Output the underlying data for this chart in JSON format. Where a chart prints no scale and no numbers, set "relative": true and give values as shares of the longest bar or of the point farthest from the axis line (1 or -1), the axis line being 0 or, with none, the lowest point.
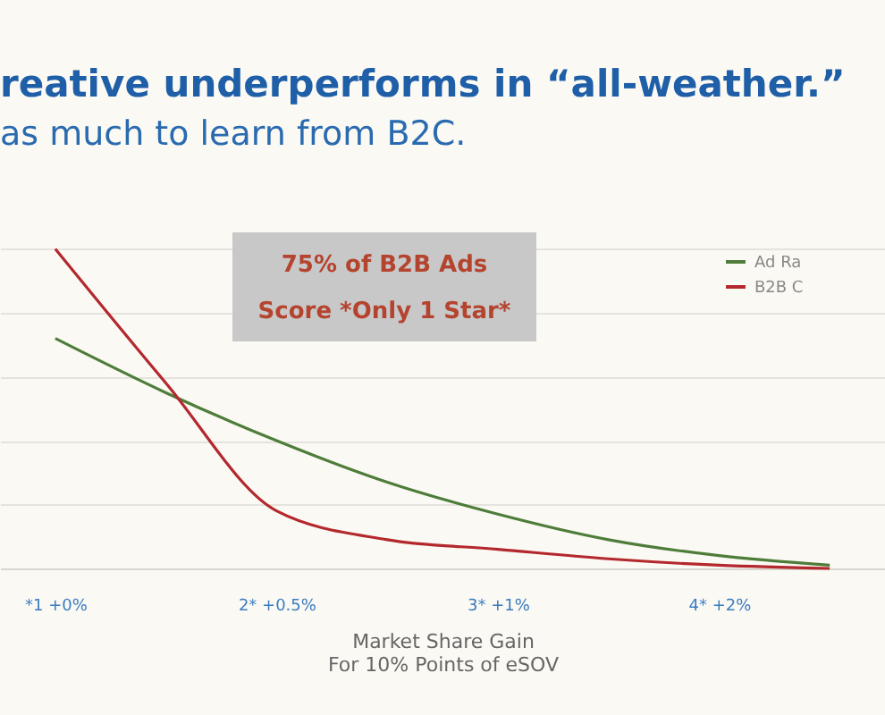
{
  "chart_data": {
    "type": "line",
    "title": "reative underperforms in “all-weather.”",
    "subtitle": "as much to learn from B2C.",
    "xlabel": "Market Share Gain\nFor 10% Points of eSOV",
    "annotations": [
      "75% of B2B Ads\nScore *Only 1 Star*"
    ],
    "relative": true,
    "categories": [
      "*1 +0%",
      null,
      "2* +0.5%",
      null,
      "3* +1%",
      null,
      "4* +2%",
      null
    ],
    "grid": "y",
    "legend": "top right",
    "marker": "none",
    "line_style": "solid",
    "series": [
      {
        "name": "Ad Ra",
        "color": "#4e7d3a",
        "values": [
          0.72,
          0.55,
          0.4,
          0.27,
          0.17,
          0.09,
          0.04,
          0.01
        ]
      },
      {
        "name": "B2B C",
        "color": "#b3282d",
        "values": [
          1,
          0.58,
          0.18,
          0.09,
          0.06,
          0.03,
          0.01,
          0
        ]
      }
    ]
  }
}
